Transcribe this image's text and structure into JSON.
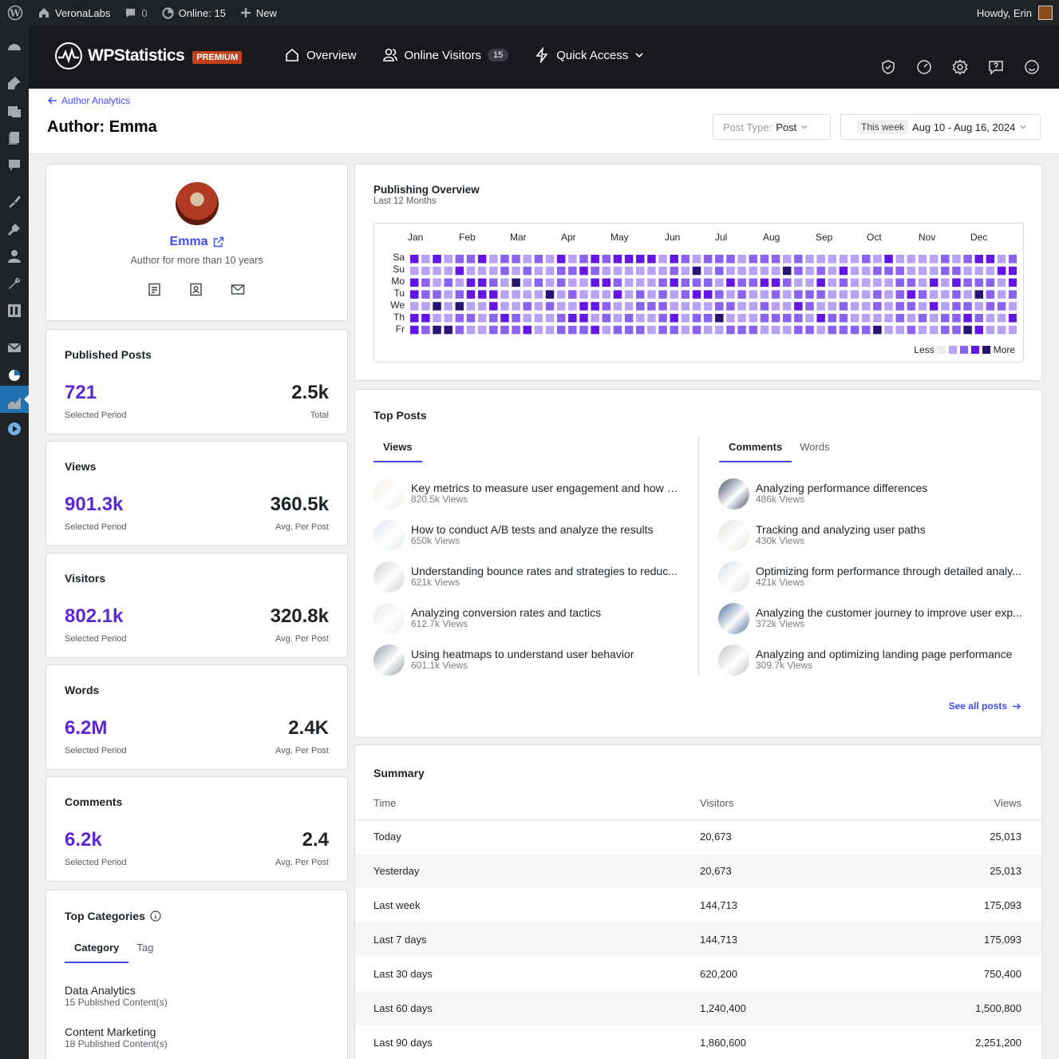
{
  "adminbar": {
    "site_name": "VeronaLabs",
    "comments_count": "0",
    "online": "Online: 15",
    "new_label": "New",
    "howdy": "Howdy, Erin"
  },
  "header": {
    "logo": "WPStatistics",
    "premium": "PREMIUM",
    "nav": {
      "overview": "Overview",
      "online_visitors": "Online Visitors",
      "online_count": "15",
      "quick_access": "Quick Access"
    }
  },
  "titlebar": {
    "back": "Author Analytics",
    "title": "Author: Emma",
    "post_type_label": "Post Type:",
    "post_type_value": "Post",
    "range_chip": "This week",
    "range_value": "Aug 10 - Aug 16, 2024"
  },
  "author": {
    "name": "Emma",
    "subtitle": "Author for more than 10 years"
  },
  "stats": [
    {
      "title": "Published Posts",
      "value": "721",
      "value_label": "Selected Period",
      "secondary": "2.5k",
      "secondary_label": "Total"
    },
    {
      "title": "Views",
      "value": "901.3k",
      "value_label": "Selected Period",
      "secondary": "360.5k",
      "secondary_label": "Avg. Per Post"
    },
    {
      "title": "Visitors",
      "value": "802.1k",
      "value_label": "Selected Period",
      "secondary": "320.8k",
      "secondary_label": "Avg. Per Post"
    },
    {
      "title": "Words",
      "value": "6.2M",
      "value_label": "Selected Period",
      "secondary": "2.4K",
      "secondary_label": "Avg. Per Post"
    },
    {
      "title": "Comments",
      "value": "6.2k",
      "value_label": "Selected Period",
      "secondary": "2.4",
      "secondary_label": "Avg. Per Post"
    }
  ],
  "categories": {
    "title": "Top Categories",
    "tabs": [
      "Category",
      "Tag"
    ],
    "items": [
      {
        "name": "Data Analytics",
        "detail": "15 Published Content(s)"
      },
      {
        "name": "Content Marketing",
        "detail": "18 Published Content(s)"
      }
    ]
  },
  "publishing": {
    "title": "Publishing Overview",
    "subtitle": "Last 12 Months",
    "months": [
      "Jan",
      "Feb",
      "Mar",
      "Apr",
      "May",
      "Jun",
      "Jul",
      "Aug",
      "Sep",
      "Oct",
      "Nov",
      "Dec"
    ],
    "days": [
      "Sa",
      "Su",
      "Mo",
      "Tu",
      "We",
      "Th",
      "Fr"
    ],
    "legend_less": "Less",
    "legend_more": "More",
    "colors": [
      "#ebebeb",
      "#b9a2f6",
      "#8b61ef",
      "#6315e6",
      "#2a1473"
    ],
    "levels": [
      "3131223122121312323333132122212221211111213111121233123233411431121111122211421441421",
      "1111311121211223211111121412111114212131122211122111332332141324321312211121142121110",
      "3212133214121211332111232221322332113121111221313222134431441333221141333214311222121",
      "3221233311114121113121212332121121222111121232112142122112331432123132321331211231421",
      "1141411311212113321122211112211211321121121221312212213312323244121121323131223111321",
      "3311221232111233121211231224111222213221111212122321132313311443332232221221121132230",
      "3244211222311222312221221211222111221222241121122431112341423144323241312212122323130"
    ]
  },
  "top_posts": {
    "title": "Top Posts",
    "left_tabs": [
      "Views"
    ],
    "right_tabs": [
      "Comments",
      "Words"
    ],
    "left": [
      {
        "title": "Key metrics to measure user engagement and how t...",
        "views": "820.5k Views",
        "thumb": "#f3ece6"
      },
      {
        "title": "How to conduct A/B tests and analyze the results",
        "views": "650k Views",
        "thumb": "#dfe6ef"
      },
      {
        "title": "Understanding bounce rates and strategies to reduc...",
        "views": "621k Views",
        "thumb": "#cfcfcf"
      },
      {
        "title": "Analyzing conversion rates and tactics",
        "views": "612.7k Views",
        "thumb": "#e9e9e9"
      },
      {
        "title": "Using heatmaps to understand user behavior",
        "views": "601.1k Views",
        "thumb": "#8f9aa8"
      }
    ],
    "right": [
      {
        "title": "Analyzing performance differences",
        "views": "486k Views",
        "thumb": "#3b4c66"
      },
      {
        "title": "Tracking and analyzing user paths",
        "views": "430k Views",
        "thumb": "#e6e0da"
      },
      {
        "title": "Optimizing form performance through detailed analy...",
        "views": "421k Views",
        "thumb": "#d8dde4"
      },
      {
        "title": "Analyzing the customer journey to improve user exp...",
        "views": "372k Views",
        "thumb": "#4a6b9b"
      },
      {
        "title": "Analyzing and optimizing landing page performance",
        "views": "309.7k Views",
        "thumb": "#bfc3c7"
      }
    ],
    "see_all": "See all posts"
  },
  "summary": {
    "title": "Summary",
    "headers": [
      "Time",
      "Visitors",
      "Views"
    ],
    "rows": [
      [
        "Today",
        "20,673",
        "25,013"
      ],
      [
        "Yesterday",
        "20,673",
        "25,013"
      ],
      [
        "Last week",
        "144,713",
        "175,093"
      ],
      [
        "Last 7 days",
        "144,713",
        "175,093"
      ],
      [
        "Last 30 days",
        "620,200",
        "750,400"
      ],
      [
        "Last 60 days",
        "1,240,400",
        "1,500,800"
      ],
      [
        "Last 90 days",
        "1,860,600",
        "2,251,200"
      ]
    ]
  }
}
